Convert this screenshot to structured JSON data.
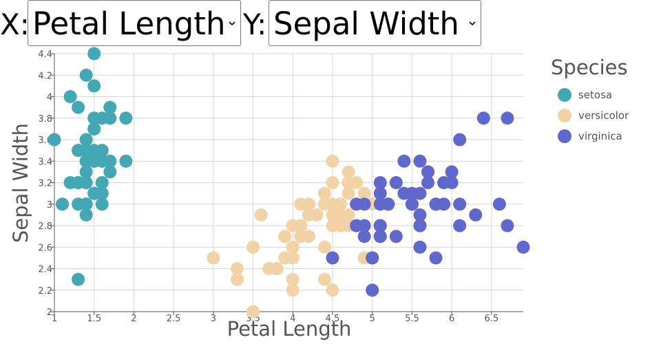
{
  "controls": {
    "x_prefix": "X:",
    "x_selected": "Petal Length",
    "y_prefix": "Y:",
    "y_selected": "Sepal Width"
  },
  "colors": {
    "setosa": "#44a7b4",
    "versicolor": "#f2d3a5",
    "virginica": "#6068cc",
    "grid": "#d6d6d6",
    "axis": "#555555"
  },
  "icons": {
    "dropdown": "chevron-down-icon"
  },
  "chart_data": {
    "type": "scatter",
    "xlabel": "Petal Length",
    "ylabel": "Sepal Width",
    "xlim": [
      1,
      6.9
    ],
    "ylim": [
      2,
      4.4
    ],
    "xticks": [
      "1",
      "1.5",
      "2",
      "2.5",
      "3",
      "3.5",
      "4",
      "4.5",
      "5",
      "5.5",
      "6",
      "6.5"
    ],
    "xtick_values": [
      1,
      1.5,
      2,
      2.5,
      3,
      3.5,
      4,
      4.5,
      5,
      5.5,
      6,
      6.5
    ],
    "yticks": [
      "2",
      "2.2",
      "2.4",
      "2.6",
      "2.8",
      "3",
      "3.2",
      "3.4",
      "3.6",
      "3.8",
      "4",
      "4.2",
      "4.4"
    ],
    "ytick_values": [
      2,
      2.2,
      2.4,
      2.6,
      2.8,
      3,
      3.2,
      3.4,
      3.6,
      3.8,
      4,
      4.2,
      4.4
    ],
    "grid": true,
    "legend": {
      "title": "Species",
      "position": "right"
    },
    "series": [
      {
        "name": "setosa",
        "points": [
          [
            1.4,
            3.5
          ],
          [
            1.4,
            3.0
          ],
          [
            1.3,
            3.2
          ],
          [
            1.5,
            3.1
          ],
          [
            1.4,
            3.6
          ],
          [
            1.7,
            3.9
          ],
          [
            1.4,
            3.4
          ],
          [
            1.5,
            3.4
          ],
          [
            1.4,
            2.9
          ],
          [
            1.5,
            3.1
          ],
          [
            1.5,
            3.7
          ],
          [
            1.6,
            3.4
          ],
          [
            1.4,
            3.0
          ],
          [
            1.1,
            3.0
          ],
          [
            1.2,
            4.0
          ],
          [
            1.5,
            4.4
          ],
          [
            1.3,
            3.9
          ],
          [
            1.4,
            3.5
          ],
          [
            1.7,
            3.8
          ],
          [
            1.5,
            3.8
          ],
          [
            1.7,
            3.4
          ],
          [
            1.5,
            3.7
          ],
          [
            1.0,
            3.6
          ],
          [
            1.7,
            3.3
          ],
          [
            1.9,
            3.4
          ],
          [
            1.6,
            3.0
          ],
          [
            1.6,
            3.4
          ],
          [
            1.5,
            3.5
          ],
          [
            1.4,
            3.4
          ],
          [
            1.6,
            3.2
          ],
          [
            1.6,
            3.1
          ],
          [
            1.5,
            3.4
          ],
          [
            1.5,
            4.1
          ],
          [
            1.4,
            4.2
          ],
          [
            1.5,
            3.1
          ],
          [
            1.2,
            3.2
          ],
          [
            1.3,
            3.5
          ],
          [
            1.4,
            3.6
          ],
          [
            1.3,
            3.0
          ],
          [
            1.5,
            3.4
          ],
          [
            1.3,
            3.5
          ],
          [
            1.3,
            2.3
          ],
          [
            1.3,
            3.2
          ],
          [
            1.6,
            3.5
          ],
          [
            1.9,
            3.8
          ],
          [
            1.4,
            3.0
          ],
          [
            1.6,
            3.8
          ],
          [
            1.4,
            3.2
          ],
          [
            1.5,
            3.7
          ],
          [
            1.4,
            3.3
          ]
        ]
      },
      {
        "name": "versicolor",
        "points": [
          [
            4.7,
            3.2
          ],
          [
            4.5,
            3.2
          ],
          [
            4.9,
            3.1
          ],
          [
            4.0,
            2.3
          ],
          [
            4.6,
            2.8
          ],
          [
            4.5,
            2.8
          ],
          [
            4.7,
            3.3
          ],
          [
            3.3,
            2.4
          ],
          [
            4.6,
            2.9
          ],
          [
            3.9,
            2.7
          ],
          [
            3.5,
            2.0
          ],
          [
            4.2,
            3.0
          ],
          [
            4.0,
            2.2
          ],
          [
            4.7,
            2.9
          ],
          [
            3.6,
            2.9
          ],
          [
            4.4,
            3.1
          ],
          [
            4.5,
            3.0
          ],
          [
            4.1,
            2.7
          ],
          [
            4.5,
            2.2
          ],
          [
            3.9,
            2.5
          ],
          [
            4.8,
            3.2
          ],
          [
            4.0,
            2.8
          ],
          [
            4.9,
            2.5
          ],
          [
            4.7,
            2.8
          ],
          [
            4.3,
            2.9
          ],
          [
            4.4,
            3.0
          ],
          [
            4.8,
            2.8
          ],
          [
            5.0,
            3.0
          ],
          [
            4.5,
            2.9
          ],
          [
            3.5,
            2.6
          ],
          [
            3.8,
            2.4
          ],
          [
            3.7,
            2.4
          ],
          [
            3.9,
            2.7
          ],
          [
            5.1,
            2.7
          ],
          [
            4.5,
            3.0
          ],
          [
            4.5,
            3.4
          ],
          [
            4.7,
            3.1
          ],
          [
            4.4,
            2.3
          ],
          [
            4.1,
            3.0
          ],
          [
            4.0,
            2.5
          ],
          [
            4.4,
            2.6
          ],
          [
            4.6,
            3.0
          ],
          [
            4.0,
            2.6
          ],
          [
            3.3,
            2.3
          ],
          [
            4.2,
            2.7
          ],
          [
            4.2,
            3.0
          ],
          [
            4.2,
            2.9
          ],
          [
            4.3,
            2.9
          ],
          [
            3.0,
            2.5
          ],
          [
            4.1,
            2.8
          ]
        ]
      },
      {
        "name": "virginica",
        "points": [
          [
            6.0,
            3.3
          ],
          [
            5.1,
            2.7
          ],
          [
            5.9,
            3.0
          ],
          [
            5.6,
            2.9
          ],
          [
            5.8,
            3.0
          ],
          [
            6.6,
            3.0
          ],
          [
            4.5,
            2.5
          ],
          [
            6.3,
            2.9
          ],
          [
            5.8,
            2.5
          ],
          [
            6.1,
            3.6
          ],
          [
            5.1,
            3.2
          ],
          [
            5.3,
            2.7
          ],
          [
            5.5,
            3.0
          ],
          [
            5.0,
            2.5
          ],
          [
            5.1,
            2.8
          ],
          [
            5.3,
            3.2
          ],
          [
            5.5,
            3.0
          ],
          [
            6.7,
            3.8
          ],
          [
            6.9,
            2.6
          ],
          [
            5.0,
            2.2
          ],
          [
            5.7,
            3.2
          ],
          [
            4.9,
            2.8
          ],
          [
            6.7,
            2.8
          ],
          [
            4.9,
            2.7
          ],
          [
            5.7,
            3.3
          ],
          [
            6.0,
            3.2
          ],
          [
            4.8,
            2.8
          ],
          [
            4.9,
            3.0
          ],
          [
            5.6,
            2.8
          ],
          [
            5.8,
            3.0
          ],
          [
            6.1,
            2.8
          ],
          [
            6.4,
            3.8
          ],
          [
            5.6,
            2.8
          ],
          [
            5.1,
            2.8
          ],
          [
            5.6,
            2.6
          ],
          [
            6.1,
            3.0
          ],
          [
            5.6,
            3.4
          ],
          [
            5.5,
            3.1
          ],
          [
            4.8,
            3.0
          ],
          [
            5.4,
            3.1
          ],
          [
            5.6,
            3.1
          ],
          [
            5.1,
            3.1
          ],
          [
            5.1,
            2.7
          ],
          [
            5.9,
            3.2
          ],
          [
            5.7,
            3.3
          ],
          [
            5.2,
            3.0
          ],
          [
            5.0,
            2.5
          ],
          [
            5.2,
            3.0
          ],
          [
            5.4,
            3.4
          ],
          [
            5.1,
            3.0
          ]
        ]
      }
    ]
  }
}
